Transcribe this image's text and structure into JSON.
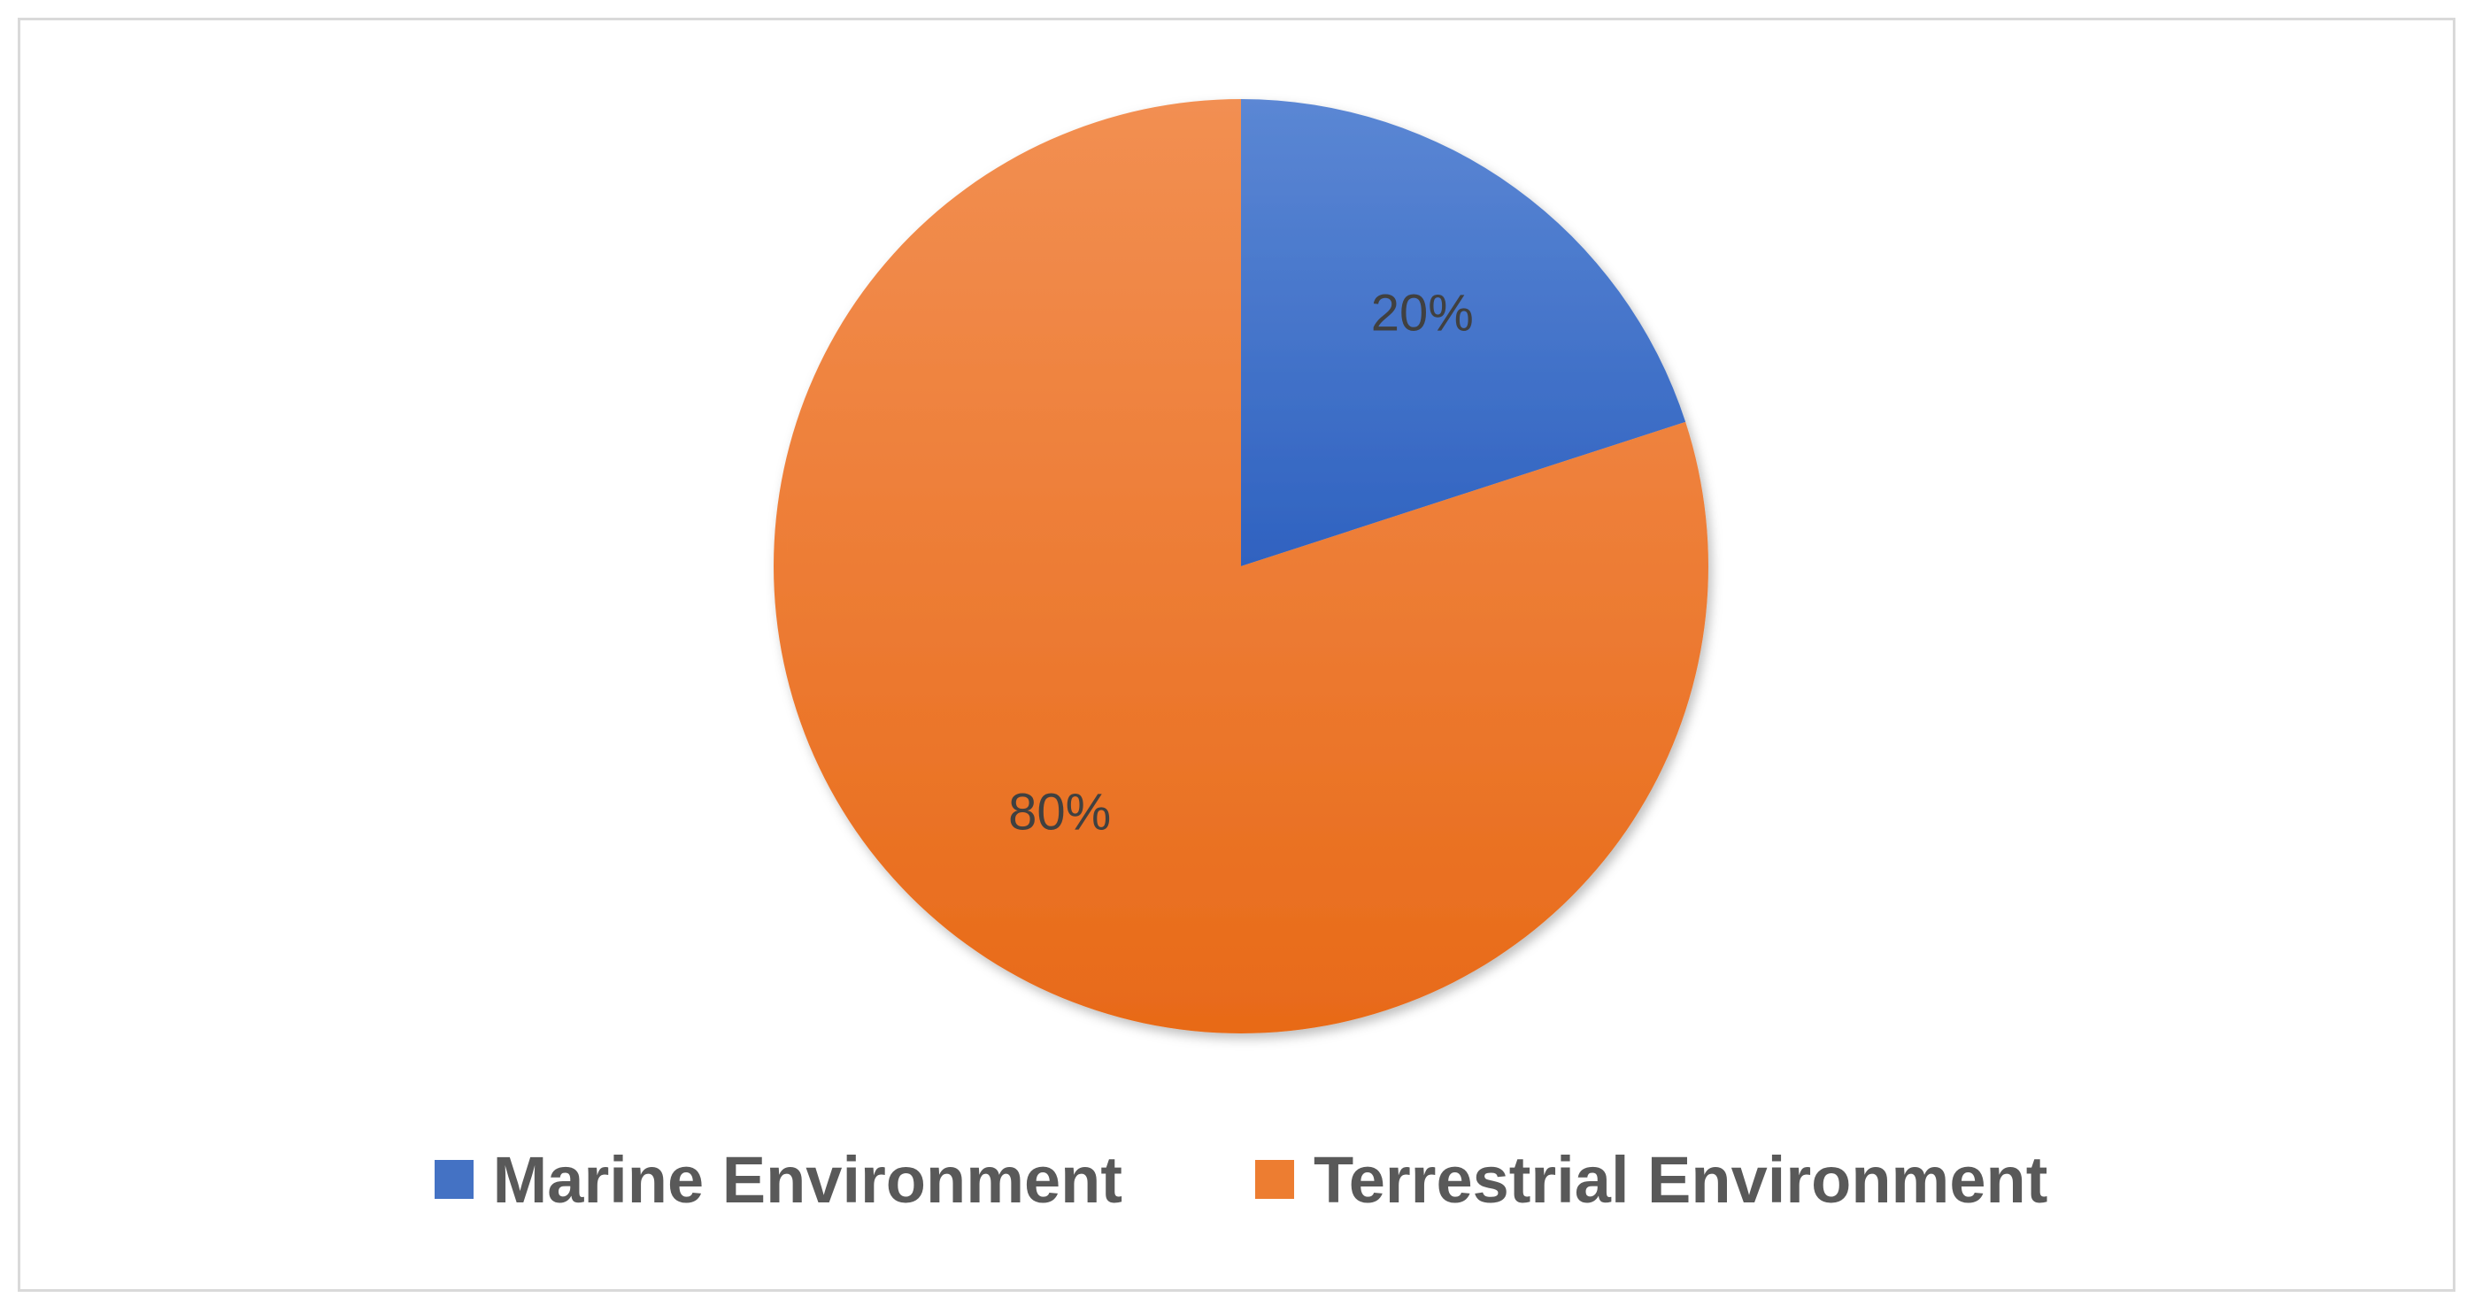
{
  "chart_data": {
    "type": "pie",
    "categories": [
      "Marine Environment",
      "Terrestrial Environment"
    ],
    "values": [
      20,
      80
    ],
    "data_labels": [
      "20%",
      "80%"
    ],
    "colors": [
      "#4472c4",
      "#ed7d31"
    ],
    "legend_position": "bottom",
    "start_angle": "top, clockwise"
  },
  "legend": {
    "items": [
      {
        "label": "Marine Environment",
        "color": "#4472c4"
      },
      {
        "label": "Terrestrial Environment",
        "color": "#ed7d31"
      }
    ]
  }
}
